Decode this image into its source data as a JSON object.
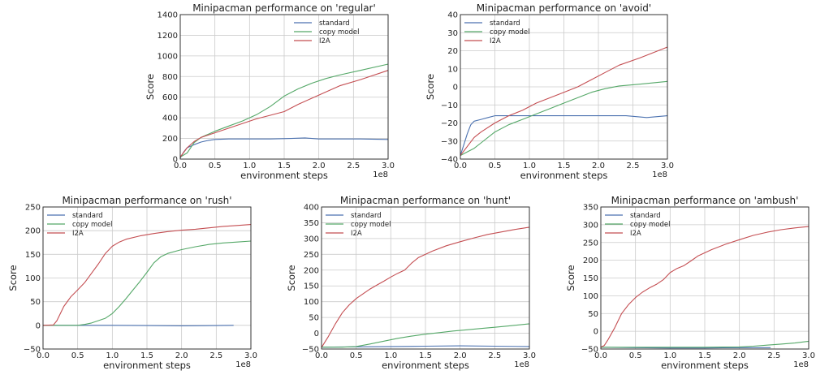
{
  "legend_labels": [
    "standard",
    "copy model",
    "I2A"
  ],
  "colors": {
    "standard": "#4c72b0",
    "copy model": "#55a868",
    "I2A": "#c44e52",
    "grid": "#cbcbcb",
    "axes": "#222222"
  },
  "chart_data": [
    {
      "type": "line",
      "title": "Minipacman performance on 'regular'",
      "xlabel": "environment steps",
      "ylabel": "Score",
      "x_multiplier": "1e8",
      "xlim": [
        0,
        3.0
      ],
      "ylim": [
        0,
        1400
      ],
      "xticks": [
        "0.0",
        "0.5",
        "1.0",
        "1.5",
        "2.0",
        "2.5",
        "3.0"
      ],
      "yticks": [
        "0",
        "200",
        "400",
        "600",
        "800",
        "1000",
        "1200",
        "1400"
      ],
      "legend_position": "top-right",
      "grid": true,
      "series": [
        {
          "name": "standard",
          "x": [
            0,
            0.05,
            0.1,
            0.2,
            0.3,
            0.4,
            0.5,
            0.7,
            1.0,
            1.3,
            1.6,
            1.8,
            2.0,
            2.3,
            2.6,
            3.0
          ],
          "values": [
            10,
            70,
            110,
            140,
            165,
            180,
            190,
            195,
            195,
            195,
            200,
            205,
            195,
            195,
            195,
            190
          ]
        },
        {
          "name": "copy model",
          "x": [
            0,
            0.1,
            0.2,
            0.3,
            0.5,
            0.7,
            0.9,
            1.1,
            1.3,
            1.5,
            1.7,
            1.9,
            2.1,
            2.3,
            2.6,
            3.0
          ],
          "values": [
            20,
            60,
            160,
            210,
            270,
            320,
            370,
            430,
            510,
            610,
            680,
            735,
            780,
            815,
            860,
            920
          ]
        },
        {
          "name": "I2A",
          "x": [
            0,
            0.1,
            0.2,
            0.3,
            0.5,
            0.7,
            0.9,
            1.1,
            1.3,
            1.5,
            1.7,
            1.9,
            2.1,
            2.3,
            2.6,
            3.0
          ],
          "values": [
            20,
            110,
            170,
            210,
            255,
            300,
            345,
            390,
            425,
            460,
            530,
            590,
            650,
            710,
            770,
            860
          ]
        }
      ]
    },
    {
      "type": "line",
      "title": "Minipacman performance on 'avoid'",
      "xlabel": "environment steps",
      "ylabel": "Score",
      "x_multiplier": "1e8",
      "xlim": [
        0,
        3.0
      ],
      "ylim": [
        -40,
        40
      ],
      "xticks": [
        "0.0",
        "0.5",
        "1.0",
        "1.5",
        "2.0",
        "2.5",
        "3.0"
      ],
      "yticks": [
        "−40",
        "−30",
        "−20",
        "−10",
        "0",
        "10",
        "20",
        "30",
        "40"
      ],
      "legend_position": "top-left",
      "grid": true,
      "series": [
        {
          "name": "standard",
          "x": [
            0,
            0.05,
            0.1,
            0.15,
            0.2,
            0.3,
            0.4,
            0.5,
            0.7,
            1.0,
            1.3,
            1.6,
            2.0,
            2.4,
            2.7,
            3.0
          ],
          "values": [
            -38,
            -32,
            -26,
            -21,
            -19,
            -18,
            -17,
            -16,
            -16,
            -16,
            -16,
            -16,
            -16,
            -16,
            -17,
            -16
          ]
        },
        {
          "name": "copy model",
          "x": [
            0,
            0.1,
            0.2,
            0.3,
            0.5,
            0.7,
            0.9,
            1.1,
            1.3,
            1.5,
            1.7,
            1.9,
            2.1,
            2.3,
            2.6,
            3.0
          ],
          "values": [
            -38,
            -36,
            -34,
            -31,
            -25,
            -21,
            -18,
            -15,
            -12,
            -9,
            -6,
            -3,
            -1,
            0.5,
            1.5,
            3
          ]
        },
        {
          "name": "I2A",
          "x": [
            0,
            0.1,
            0.2,
            0.3,
            0.5,
            0.7,
            0.9,
            1.1,
            1.3,
            1.5,
            1.7,
            1.9,
            2.1,
            2.3,
            2.6,
            3.0
          ],
          "values": [
            -38,
            -33,
            -28,
            -25,
            -20,
            -16,
            -13,
            -9,
            -6,
            -3,
            0,
            4,
            8,
            12,
            16,
            22
          ]
        }
      ]
    },
    {
      "type": "line",
      "title": "Minipacman performance on 'rush'",
      "xlabel": "environment steps",
      "ylabel": "Score",
      "x_multiplier": "1e8",
      "xlim": [
        0,
        3.0
      ],
      "ylim": [
        -50,
        250
      ],
      "xticks": [
        "0.0",
        "0.5",
        "1.0",
        "1.5",
        "2.0",
        "2.5",
        "3.0"
      ],
      "yticks": [
        "−50",
        "0",
        "50",
        "100",
        "150",
        "200",
        "250"
      ],
      "legend_position": "top-left",
      "grid": true,
      "series": [
        {
          "name": "standard",
          "x": [
            0,
            0.5,
            1.0,
            1.5,
            2.0,
            2.5,
            2.75
          ],
          "values": [
            0,
            0,
            0,
            -0.5,
            -1,
            -0.5,
            0
          ]
        },
        {
          "name": "copy model",
          "x": [
            0,
            0.5,
            0.6,
            0.7,
            0.8,
            0.9,
            1.0,
            1.1,
            1.2,
            1.3,
            1.4,
            1.5,
            1.6,
            1.7,
            1.8,
            2.0,
            2.2,
            2.4,
            2.6,
            2.8,
            3.0
          ],
          "values": [
            0,
            0,
            2,
            5,
            10,
            15,
            25,
            40,
            57,
            75,
            93,
            112,
            132,
            145,
            152,
            160,
            166,
            171,
            174,
            176,
            178
          ]
        },
        {
          "name": "I2A",
          "x": [
            0,
            0.15,
            0.2,
            0.3,
            0.4,
            0.5,
            0.6,
            0.7,
            0.8,
            0.9,
            1.0,
            1.1,
            1.2,
            1.4,
            1.6,
            1.8,
            2.0,
            2.2,
            2.4,
            2.6,
            2.8,
            3.0
          ],
          "values": [
            0,
            1,
            10,
            40,
            60,
            75,
            90,
            110,
            130,
            152,
            167,
            176,
            182,
            189,
            194,
            198,
            201,
            203,
            206,
            209,
            211,
            213
          ]
        }
      ]
    },
    {
      "type": "line",
      "title": "Minipacman performance on 'hunt'",
      "xlabel": "environment steps",
      "ylabel": "Score",
      "x_multiplier": "1e8",
      "xlim": [
        0,
        3.0
      ],
      "ylim": [
        -50,
        400
      ],
      "xticks": [
        "0.0",
        "0.5",
        "1.0",
        "1.5",
        "2.0",
        "2.5",
        "3.0"
      ],
      "yticks": [
        "−50",
        "0",
        "50",
        "100",
        "150",
        "200",
        "250",
        "300",
        "350",
        "400"
      ],
      "legend_position": "top-left",
      "grid": true,
      "series": [
        {
          "name": "standard",
          "x": [
            0,
            0.5,
            1.0,
            1.5,
            2.0,
            2.5,
            3.0
          ],
          "values": [
            -44,
            -43,
            -42,
            -41,
            -40,
            -41,
            -42
          ]
        },
        {
          "name": "copy model",
          "x": [
            0,
            0.3,
            0.5,
            0.7,
            0.9,
            1.1,
            1.3,
            1.5,
            1.7,
            1.9,
            2.1,
            2.3,
            2.5,
            2.7,
            3.0
          ],
          "values": [
            -44,
            -44,
            -42,
            -34,
            -25,
            -16,
            -9,
            -3,
            2,
            7,
            11,
            15,
            19,
            23,
            30
          ]
        },
        {
          "name": "I2A",
          "x": [
            0,
            0.1,
            0.2,
            0.3,
            0.4,
            0.5,
            0.6,
            0.7,
            0.8,
            0.9,
            1.0,
            1.1,
            1.2,
            1.3,
            1.4,
            1.6,
            1.8,
            2.0,
            2.2,
            2.4,
            2.6,
            2.8,
            3.0
          ],
          "values": [
            -45,
            -10,
            30,
            65,
            90,
            110,
            125,
            140,
            153,
            165,
            178,
            190,
            200,
            222,
            240,
            260,
            277,
            290,
            302,
            313,
            321,
            329,
            336
          ]
        }
      ]
    },
    {
      "type": "line",
      "title": "Minipacman performance on 'ambush'",
      "xlabel": "environment steps",
      "ylabel": "Score",
      "x_multiplier": "1e8",
      "xlim": [
        0,
        3.0
      ],
      "ylim": [
        -50,
        350
      ],
      "xticks": [
        "0.0",
        "0.5",
        "1.0",
        "1.5",
        "2.0",
        "2.5",
        "3.0"
      ],
      "yticks": [
        "−50",
        "0",
        "50",
        "100",
        "150",
        "200",
        "250",
        "300",
        "350"
      ],
      "legend_position": "top-left",
      "grid": true,
      "series": [
        {
          "name": "standard",
          "x": [
            0,
            0.5,
            1.0,
            1.5,
            2.0,
            2.45
          ],
          "values": [
            -45,
            -46,
            -47,
            -47,
            -46,
            -46
          ]
        },
        {
          "name": "copy model",
          "x": [
            0,
            0.5,
            1.0,
            1.5,
            2.0,
            2.2,
            2.4,
            2.6,
            2.8,
            3.0
          ],
          "values": [
            -45,
            -45,
            -45,
            -45,
            -44,
            -42,
            -39,
            -36,
            -33,
            -28
          ]
        },
        {
          "name": "I2A",
          "x": [
            0,
            0.05,
            0.1,
            0.2,
            0.3,
            0.4,
            0.5,
            0.6,
            0.7,
            0.8,
            0.9,
            1.0,
            1.1,
            1.2,
            1.3,
            1.4,
            1.6,
            1.8,
            2.0,
            2.2,
            2.4,
            2.6,
            2.8,
            3.0
          ],
          "values": [
            -45,
            -40,
            -25,
            10,
            50,
            75,
            95,
            110,
            122,
            132,
            145,
            165,
            177,
            185,
            198,
            212,
            230,
            245,
            258,
            270,
            279,
            286,
            291,
            295
          ]
        }
      ]
    }
  ]
}
